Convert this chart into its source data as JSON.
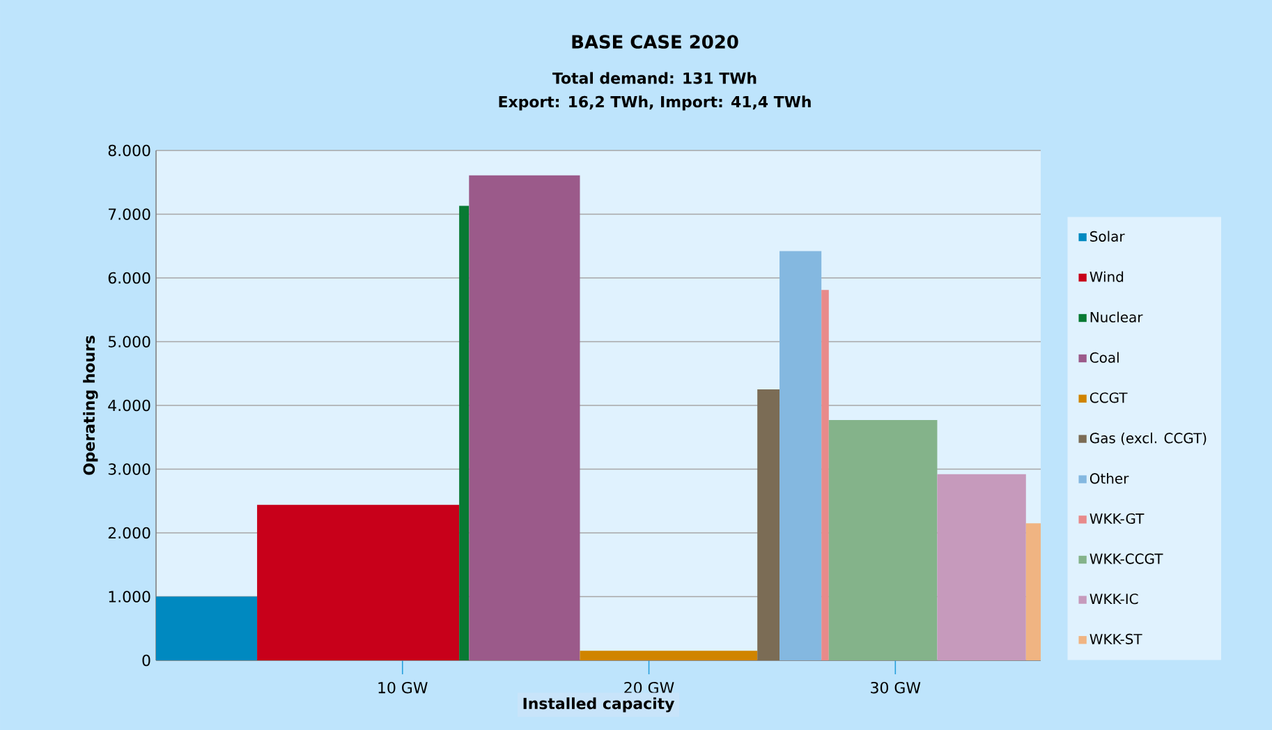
{
  "chart_data": {
    "type": "area",
    "title": "BASE CASE 2020",
    "subtitle": "Total demand: 131 TWh",
    "annotations": [
      "Export: 16,2 TWh, Import: 41,4 TWh"
    ],
    "xlabel": "Installed capacity",
    "ylabel": "Operating hours",
    "xlim": [
      0,
      35.9
    ],
    "xticks": [
      {
        "value": 10,
        "label": "10 GW"
      },
      {
        "value": 20,
        "label": "20 GW"
      },
      {
        "value": 30,
        "label": "30 GW"
      }
    ],
    "ylim": [
      0,
      8000
    ],
    "yticks": [
      0,
      {
        "value": 1000,
        "label": "1.000"
      },
      {
        "value": 2000,
        "label": "2.000"
      },
      {
        "value": 3000,
        "label": "3.000"
      },
      {
        "value": 4000,
        "label": "4.000"
      },
      {
        "value": 5000,
        "label": "5.000"
      },
      {
        "value": 6000,
        "label": "6.000"
      },
      {
        "value": 7000,
        "label": "7.000"
      },
      {
        "value": 8000,
        "label": "8.000"
      }
    ],
    "grid": "y",
    "legend": "right",
    "series": [
      {
        "name": "Solar",
        "color": "#0089c0",
        "x": [
          0,
          4.1
        ],
        "values": [
          1000,
          1000
        ]
      },
      {
        "name": "Wind",
        "color": "#c8001a",
        "x": [
          4.1,
          12.3
        ],
        "values": [
          2440,
          2440
        ]
      },
      {
        "name": "Nuclear",
        "color": "#087a33",
        "x": [
          12.3,
          12.7
        ],
        "values": [
          7130,
          7130
        ]
      },
      {
        "name": "Coal",
        "color": "#9b5a8a",
        "x": [
          12.7,
          17.2
        ],
        "values": [
          7610,
          7610
        ]
      },
      {
        "name": "CCGT",
        "color": "#d08400",
        "x": [
          17.2,
          24.4
        ],
        "values": [
          150,
          150
        ]
      },
      {
        "name": "Gas (excl. CCGT)",
        "color": "#7b6c55",
        "x": [
          24.4,
          25.3
        ],
        "values": [
          4250,
          4250
        ]
      },
      {
        "name": "Other",
        "color": "#84b8e0",
        "x": [
          25.3,
          27.0
        ],
        "values": [
          6420,
          6420
        ]
      },
      {
        "name": "WKK-GT",
        "color": "#e88a8a",
        "x": [
          27.0,
          27.3
        ],
        "values": [
          5810,
          5810
        ]
      },
      {
        "name": "WKK-CCGT",
        "color": "#84b38a",
        "x": [
          27.3,
          31.7
        ],
        "values": [
          3770,
          3770
        ]
      },
      {
        "name": "WKK-IC",
        "color": "#c69abc",
        "x": [
          31.7,
          35.3
        ],
        "values": [
          2920,
          2920
        ]
      },
      {
        "name": "WKK-ST",
        "color": "#f0b482",
        "x": [
          35.3,
          35.9
        ],
        "values": [
          2150,
          2150
        ]
      }
    ]
  }
}
